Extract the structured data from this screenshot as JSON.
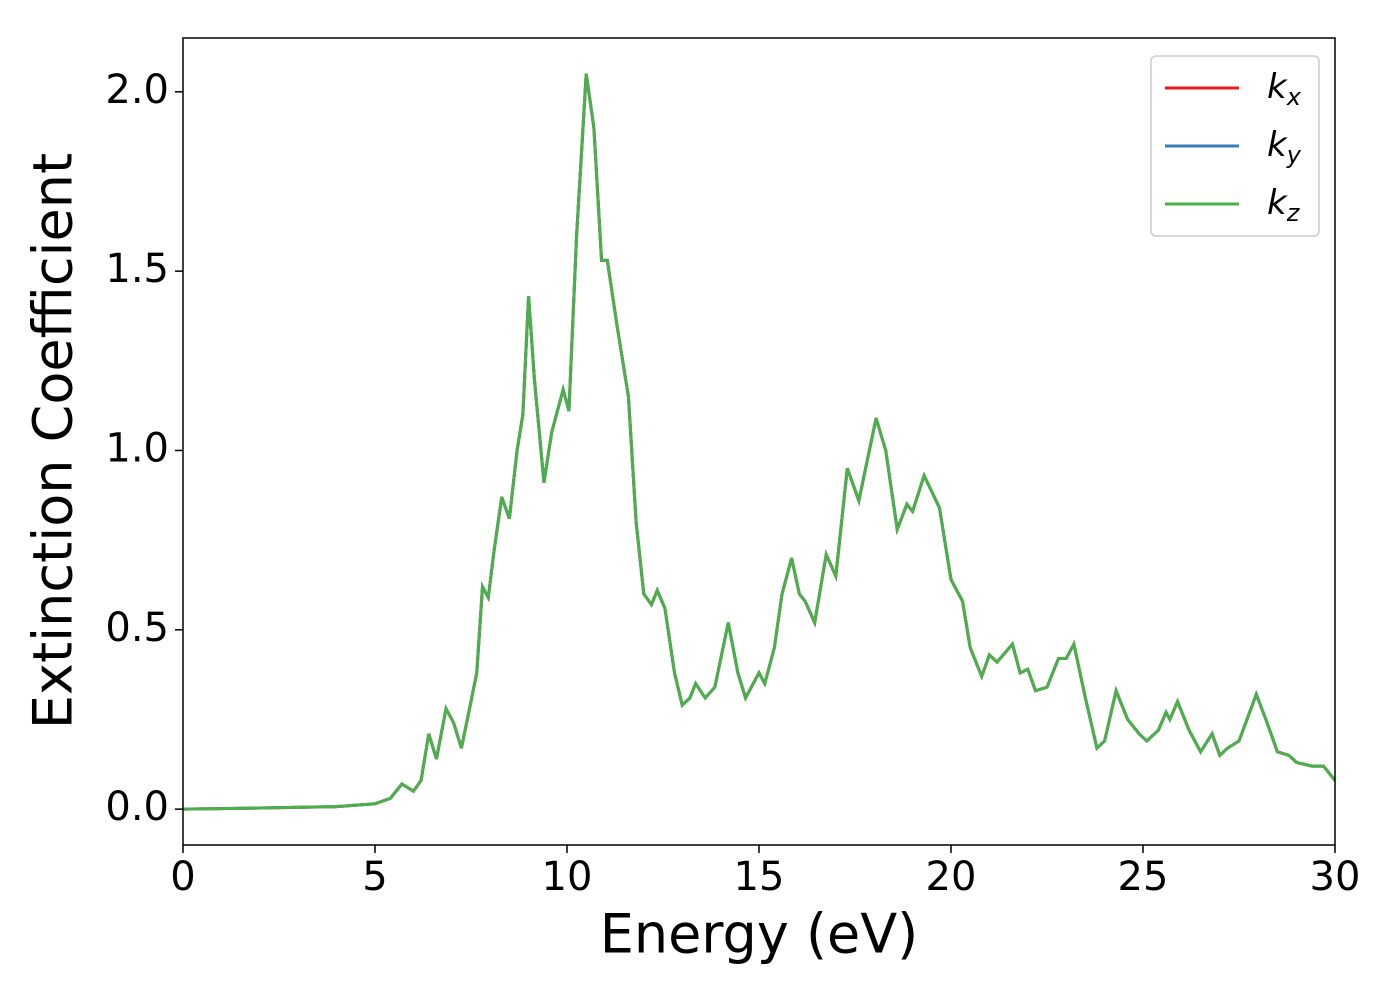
{
  "chart_data": {
    "type": "line",
    "xlabel": "Energy (eV)",
    "ylabel": "Extinction Coefficient",
    "x": [
      0,
      2,
      4,
      5,
      5.4,
      5.7,
      6.0,
      6.2,
      6.4,
      6.6,
      6.85,
      7.05,
      7.25,
      7.5,
      7.65,
      7.8,
      7.95,
      8.1,
      8.3,
      8.5,
      8.7,
      8.85,
      9.0,
      9.15,
      9.4,
      9.6,
      9.9,
      10.05,
      10.25,
      10.5,
      10.7,
      10.9,
      11.05,
      11.3,
      11.6,
      11.8,
      12.0,
      12.2,
      12.35,
      12.55,
      12.8,
      13.0,
      13.2,
      13.35,
      13.6,
      13.85,
      14.2,
      14.45,
      14.65,
      15.0,
      15.15,
      15.4,
      15.6,
      15.85,
      16.05,
      16.2,
      16.45,
      16.75,
      17.0,
      17.3,
      17.6,
      18.05,
      18.3,
      18.6,
      18.85,
      19.0,
      19.3,
      19.7,
      20.0,
      20.3,
      20.5,
      20.8,
      21.0,
      21.2,
      21.6,
      21.8,
      22.0,
      22.2,
      22.5,
      22.8,
      23.0,
      23.2,
      23.5,
      23.8,
      24.0,
      24.3,
      24.6,
      24.9,
      25.1,
      25.4,
      25.6,
      25.7,
      25.9,
      26.2,
      26.5,
      26.8,
      27.0,
      27.2,
      27.5,
      27.95,
      28.2,
      28.5,
      28.8,
      29.0,
      29.4,
      29.7,
      30.0
    ],
    "series": [
      {
        "name": "k_x",
        "color": "#e41a1c",
        "values": [
          0,
          0.003,
          0.007,
          0.015,
          0.03,
          0.07,
          0.05,
          0.08,
          0.21,
          0.14,
          0.28,
          0.24,
          0.17,
          0.3,
          0.38,
          0.62,
          0.59,
          0.72,
          0.87,
          0.81,
          1.0,
          1.1,
          1.43,
          1.2,
          0.91,
          1.05,
          1.17,
          1.11,
          1.6,
          2.05,
          1.9,
          1.53,
          1.53,
          1.35,
          1.15,
          0.8,
          0.6,
          0.57,
          0.61,
          0.56,
          0.38,
          0.29,
          0.31,
          0.35,
          0.31,
          0.34,
          0.52,
          0.38,
          0.31,
          0.38,
          0.35,
          0.45,
          0.6,
          0.7,
          0.6,
          0.58,
          0.52,
          0.71,
          0.65,
          0.95,
          0.86,
          1.09,
          1.0,
          0.78,
          0.85,
          0.83,
          0.93,
          0.84,
          0.64,
          0.58,
          0.45,
          0.37,
          0.43,
          0.41,
          0.46,
          0.38,
          0.39,
          0.33,
          0.34,
          0.42,
          0.42,
          0.46,
          0.31,
          0.17,
          0.19,
          0.33,
          0.25,
          0.21,
          0.19,
          0.22,
          0.27,
          0.25,
          0.3,
          0.22,
          0.16,
          0.21,
          0.15,
          0.17,
          0.19,
          0.32,
          0.25,
          0.16,
          0.15,
          0.13,
          0.12,
          0.12,
          0.08
        ]
      },
      {
        "name": "k_y",
        "color": "#377eb8",
        "values": [
          0,
          0.003,
          0.007,
          0.015,
          0.03,
          0.07,
          0.05,
          0.08,
          0.21,
          0.14,
          0.28,
          0.24,
          0.17,
          0.3,
          0.38,
          0.62,
          0.59,
          0.72,
          0.87,
          0.81,
          1.0,
          1.1,
          1.43,
          1.2,
          0.91,
          1.05,
          1.17,
          1.11,
          1.6,
          2.05,
          1.9,
          1.53,
          1.53,
          1.35,
          1.15,
          0.8,
          0.6,
          0.57,
          0.61,
          0.56,
          0.38,
          0.29,
          0.31,
          0.35,
          0.31,
          0.34,
          0.52,
          0.38,
          0.31,
          0.38,
          0.35,
          0.45,
          0.6,
          0.7,
          0.6,
          0.58,
          0.52,
          0.71,
          0.65,
          0.95,
          0.86,
          1.09,
          1.0,
          0.78,
          0.85,
          0.83,
          0.93,
          0.84,
          0.64,
          0.58,
          0.45,
          0.37,
          0.43,
          0.41,
          0.46,
          0.38,
          0.39,
          0.33,
          0.34,
          0.42,
          0.42,
          0.46,
          0.31,
          0.17,
          0.19,
          0.33,
          0.25,
          0.21,
          0.19,
          0.22,
          0.27,
          0.25,
          0.3,
          0.22,
          0.16,
          0.21,
          0.15,
          0.17,
          0.19,
          0.32,
          0.25,
          0.16,
          0.15,
          0.13,
          0.12,
          0.12,
          0.08
        ]
      },
      {
        "name": "k_z",
        "color": "#4daf4a",
        "values": [
          0,
          0.003,
          0.007,
          0.015,
          0.03,
          0.07,
          0.05,
          0.08,
          0.21,
          0.14,
          0.28,
          0.24,
          0.17,
          0.3,
          0.38,
          0.62,
          0.59,
          0.72,
          0.87,
          0.81,
          1.0,
          1.1,
          1.43,
          1.2,
          0.91,
          1.05,
          1.17,
          1.11,
          1.6,
          2.05,
          1.9,
          1.53,
          1.53,
          1.35,
          1.15,
          0.8,
          0.6,
          0.57,
          0.61,
          0.56,
          0.38,
          0.29,
          0.31,
          0.35,
          0.31,
          0.34,
          0.52,
          0.38,
          0.31,
          0.38,
          0.35,
          0.45,
          0.6,
          0.7,
          0.6,
          0.58,
          0.52,
          0.71,
          0.65,
          0.95,
          0.86,
          1.09,
          1.0,
          0.78,
          0.85,
          0.83,
          0.93,
          0.84,
          0.64,
          0.58,
          0.45,
          0.37,
          0.43,
          0.41,
          0.46,
          0.38,
          0.39,
          0.33,
          0.34,
          0.42,
          0.42,
          0.46,
          0.31,
          0.17,
          0.19,
          0.33,
          0.25,
          0.21,
          0.19,
          0.22,
          0.27,
          0.25,
          0.3,
          0.22,
          0.16,
          0.21,
          0.15,
          0.17,
          0.19,
          0.32,
          0.25,
          0.16,
          0.15,
          0.13,
          0.12,
          0.12,
          0.08
        ]
      }
    ],
    "xlim": [
      0,
      30
    ],
    "xticks": [
      0,
      5,
      10,
      15,
      20,
      25,
      30
    ],
    "ylim": [
      -0.1,
      2.15
    ],
    "yticks": [
      {
        "value": 0,
        "label": "0.0"
      },
      {
        "value": 0.5,
        "label": "0.5"
      },
      {
        "value": 1,
        "label": "1.0"
      },
      {
        "value": 1.5,
        "label": "1.5"
      },
      {
        "value": 2,
        "label": "2.0"
      }
    ],
    "legend": "upper right"
  }
}
